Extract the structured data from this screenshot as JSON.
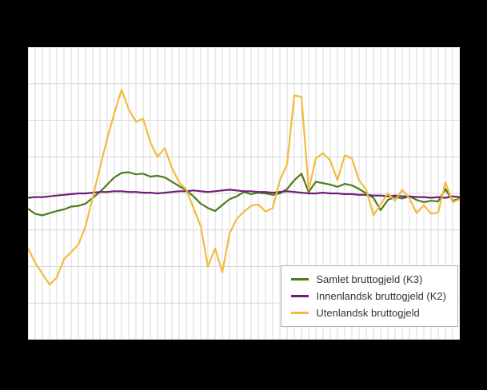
{
  "page": {
    "background": "#000000",
    "plot_background": "#ffffff"
  },
  "chart_data": {
    "type": "line",
    "title": "",
    "xlabel": "",
    "ylabel": "",
    "ylim": [
      -15,
      25
    ],
    "ytick_step": 5,
    "x_points": 61,
    "grid": true,
    "grid_color": "#d9d9d9",
    "legend_position": "bottom-right",
    "legend_border_color": "#b3b3b3",
    "series": [
      {
        "name": "Samlet bruttogjeld (K3)",
        "color": "#4e7d1d",
        "values": [
          2.9,
          2.2,
          2.0,
          2.3,
          2.6,
          2.8,
          3.2,
          3.3,
          3.6,
          4.4,
          5.2,
          6.2,
          7.2,
          7.8,
          7.9,
          7.6,
          7.7,
          7.3,
          7.4,
          7.2,
          6.6,
          6.0,
          5.4,
          4.6,
          3.6,
          3.0,
          2.6,
          3.4,
          4.2,
          4.6,
          5.2,
          4.9,
          5.1,
          5.0,
          4.8,
          5.0,
          5.6,
          6.8,
          7.7,
          5.2,
          6.6,
          6.4,
          6.2,
          5.9,
          6.3,
          6.1,
          5.6,
          5.0,
          4.4,
          2.7,
          4.1,
          4.5,
          4.3,
          4.6,
          4.1,
          3.8,
          4.0,
          3.9,
          5.6,
          4.0,
          4.3
        ]
      },
      {
        "name": "Innenlandsk bruttogjeld (K2)",
        "color": "#6e1e78",
        "values": [
          4.4,
          4.5,
          4.5,
          4.6,
          4.7,
          4.8,
          4.9,
          5.0,
          5.0,
          5.1,
          5.2,
          5.2,
          5.3,
          5.3,
          5.2,
          5.2,
          5.1,
          5.1,
          5.0,
          5.1,
          5.2,
          5.3,
          5.3,
          5.4,
          5.3,
          5.2,
          5.3,
          5.4,
          5.5,
          5.4,
          5.3,
          5.3,
          5.2,
          5.2,
          5.1,
          5.2,
          5.3,
          5.2,
          5.1,
          5.0,
          5.0,
          5.1,
          5.0,
          5.0,
          4.9,
          4.9,
          4.8,
          4.8,
          4.7,
          4.7,
          4.6,
          4.7,
          4.6,
          4.6,
          4.5,
          4.5,
          4.4,
          4.5,
          4.4,
          4.6,
          4.5
        ]
      },
      {
        "name": "Utenlandsk bruttogjeld",
        "color": "#f1bc3f",
        "values": [
          -2.5,
          -4.5,
          -6.0,
          -7.5,
          -6.5,
          -4.0,
          -3.0,
          -2.0,
          0.5,
          4.5,
          8.5,
          12.5,
          16.0,
          19.2,
          16.5,
          14.8,
          15.2,
          12.0,
          10.0,
          11.2,
          8.5,
          6.5,
          5.5,
          3.0,
          0.5,
          -5.0,
          -2.5,
          -5.8,
          -0.5,
          1.5,
          2.5,
          3.3,
          3.5,
          2.5,
          3.0,
          6.8,
          9.0,
          18.4,
          18.2,
          5.5,
          9.8,
          10.5,
          9.5,
          6.8,
          10.2,
          9.8,
          6.8,
          5.5,
          2.0,
          3.5,
          5.0,
          4.0,
          5.5,
          4.3,
          2.3,
          3.4,
          2.2,
          2.4,
          6.5,
          3.8,
          4.2
        ]
      }
    ]
  }
}
